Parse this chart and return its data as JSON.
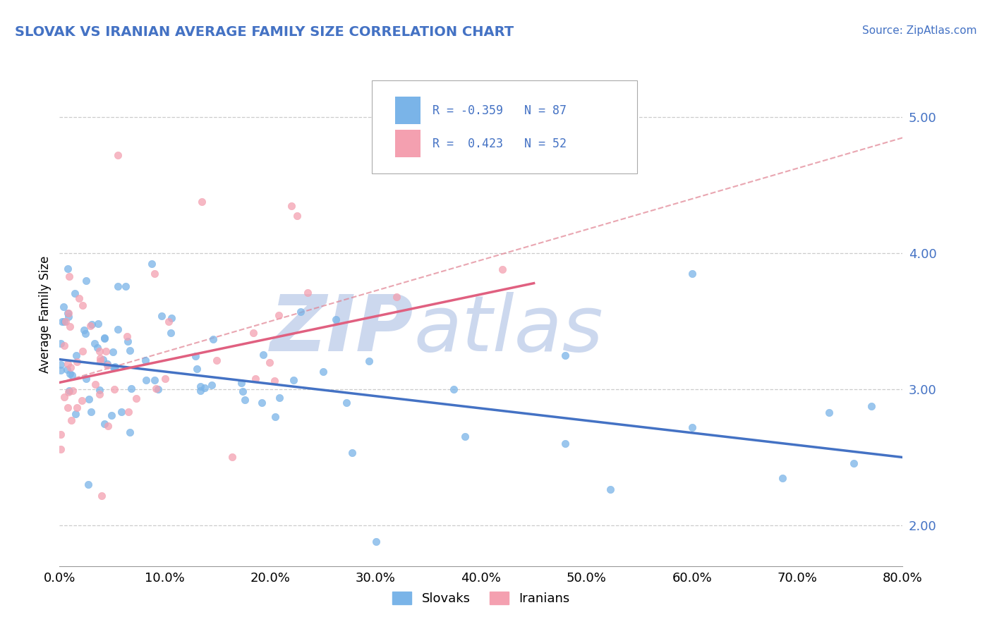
{
  "title": "SLOVAK VS IRANIAN AVERAGE FAMILY SIZE CORRELATION CHART",
  "source": "Source: ZipAtlas.com",
  "ylabel": "Average Family Size",
  "xlabel_ticks": [
    "0.0%",
    "10.0%",
    "20.0%",
    "30.0%",
    "40.0%",
    "50.0%",
    "60.0%",
    "70.0%",
    "80.0%"
  ],
  "ytick_labels": [
    "2.00",
    "3.00",
    "4.00",
    "5.00"
  ],
  "ytick_values": [
    2.0,
    3.0,
    4.0,
    5.0
  ],
  "xlim": [
    0.0,
    0.8
  ],
  "ylim": [
    1.7,
    5.4
  ],
  "color_slovak": "#7ab4e8",
  "color_iranian": "#f4a0b0",
  "color_line_slovak": "#4472c4",
  "color_line_iranian": "#e06080",
  "color_dashed": "#e08090",
  "title_color": "#4472c4",
  "source_color": "#4472c4",
  "R_slovak": -0.359,
  "N_slovak": 87,
  "R_iranian": 0.423,
  "N_iranian": 52,
  "sk_line_x0": 0.0,
  "sk_line_y0": 3.22,
  "sk_line_x1": 0.8,
  "sk_line_y1": 2.5,
  "ir_line_x0": 0.0,
  "ir_line_y0": 3.05,
  "ir_line_x1": 0.45,
  "ir_line_y1": 3.78,
  "dash_line_x0": 0.0,
  "dash_line_y0": 3.05,
  "dash_line_x1": 0.8,
  "dash_line_y1": 4.85
}
